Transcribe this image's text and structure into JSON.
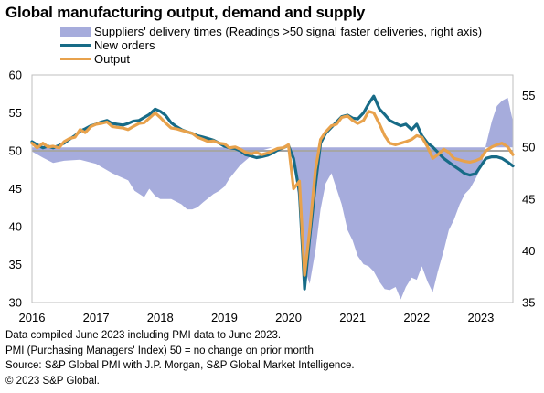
{
  "title": "Global manufacturing output, demand and supply",
  "notes": [
    "Data compiled June 2023 including PMI data to June 2023.",
    "PMI (Purchasing Managers' Index) 50 = no change on prior month",
    "Source: S&P Global  PMI with J.P. Morgan, S&P Global Market Intelligence.",
    "© 2023 S&P Global."
  ],
  "chart_data": {
    "type": "line",
    "title": "Global manufacturing output, demand and supply",
    "x_unit": "decimal year",
    "x_range": [
      2016.0,
      2023.5
    ],
    "x_ticks": [
      "2016",
      "2017",
      "2018",
      "2019",
      "2020",
      "2021",
      "2022",
      "2023"
    ],
    "ylim_left": [
      30,
      60
    ],
    "y_ticks_left": [
      30,
      35,
      40,
      45,
      50,
      55,
      60
    ],
    "ylim_right": [
      35,
      57
    ],
    "y_ticks_right": [
      35,
      40,
      45,
      50,
      55
    ],
    "reference_line": 50,
    "grid": false,
    "legend_position": "top",
    "series": [
      {
        "name": "Suppliers' delivery times (Readings >50 signal faster deliveries, right axis)",
        "axis": "right",
        "style": "area",
        "color": "#a6acdc",
        "points": [
          [
            2016.0,
            49.6
          ],
          [
            2016.17,
            49.0
          ],
          [
            2016.33,
            48.5
          ],
          [
            2016.5,
            48.7
          ],
          [
            2016.75,
            48.8
          ],
          [
            2017.0,
            48.4
          ],
          [
            2017.25,
            47.5
          ],
          [
            2017.5,
            46.8
          ],
          [
            2017.6,
            45.8
          ],
          [
            2017.75,
            45.2
          ],
          [
            2017.83,
            46.0
          ],
          [
            2017.92,
            45.3
          ],
          [
            2018.0,
            45.0
          ],
          [
            2018.17,
            45.0
          ],
          [
            2018.33,
            44.5
          ],
          [
            2018.42,
            44.0
          ],
          [
            2018.5,
            44.0
          ],
          [
            2018.58,
            44.2
          ],
          [
            2018.67,
            44.7
          ],
          [
            2018.83,
            45.5
          ],
          [
            2018.92,
            45.8
          ],
          [
            2019.0,
            46.2
          ],
          [
            2019.08,
            47.0
          ],
          [
            2019.25,
            48.3
          ],
          [
            2019.42,
            49.2
          ],
          [
            2019.58,
            49.7
          ],
          [
            2019.75,
            50.0
          ],
          [
            2019.92,
            50.0
          ],
          [
            2020.0,
            50.1
          ],
          [
            2020.08,
            49.3
          ],
          [
            2020.17,
            44.0
          ],
          [
            2020.25,
            38.3
          ],
          [
            2020.33,
            36.8
          ],
          [
            2020.42,
            40.0
          ],
          [
            2020.5,
            44.0
          ],
          [
            2020.58,
            46.5
          ],
          [
            2020.67,
            47.5
          ],
          [
            2020.75,
            46.0
          ],
          [
            2020.83,
            44.5
          ],
          [
            2020.92,
            42.0
          ],
          [
            2021.0,
            41.0
          ],
          [
            2021.08,
            39.5
          ],
          [
            2021.17,
            38.7
          ],
          [
            2021.25,
            38.5
          ],
          [
            2021.33,
            38.0
          ],
          [
            2021.42,
            37.0
          ],
          [
            2021.5,
            36.3
          ],
          [
            2021.58,
            36.2
          ],
          [
            2021.67,
            36.5
          ],
          [
            2021.75,
            35.3
          ],
          [
            2021.83,
            36.5
          ],
          [
            2021.92,
            37.4
          ],
          [
            2022.0,
            37.2
          ],
          [
            2022.08,
            38.5
          ],
          [
            2022.17,
            37.0
          ],
          [
            2022.25,
            36.0
          ],
          [
            2022.33,
            38.0
          ],
          [
            2022.42,
            40.0
          ],
          [
            2022.5,
            42.0
          ],
          [
            2022.58,
            43.0
          ],
          [
            2022.67,
            44.5
          ],
          [
            2022.75,
            45.5
          ],
          [
            2022.83,
            46.0
          ],
          [
            2022.92,
            47.0
          ],
          [
            2023.0,
            48.0
          ],
          [
            2023.08,
            50.2
          ],
          [
            2023.17,
            52.5
          ],
          [
            2023.25,
            54.0
          ],
          [
            2023.33,
            54.5
          ],
          [
            2023.42,
            54.8
          ],
          [
            2023.5,
            52.5
          ]
        ]
      },
      {
        "name": "New orders",
        "axis": "left",
        "style": "line",
        "color": "#176b87",
        "points": [
          [
            2016.0,
            51.2
          ],
          [
            2016.08,
            50.8
          ],
          [
            2016.17,
            50.4
          ],
          [
            2016.25,
            50.6
          ],
          [
            2016.33,
            50.4
          ],
          [
            2016.42,
            50.7
          ],
          [
            2016.5,
            51.0
          ],
          [
            2016.58,
            51.5
          ],
          [
            2016.67,
            52.0
          ],
          [
            2016.75,
            52.6
          ],
          [
            2016.83,
            52.9
          ],
          [
            2016.92,
            53.3
          ],
          [
            2017.0,
            53.5
          ],
          [
            2017.08,
            53.8
          ],
          [
            2017.17,
            54.0
          ],
          [
            2017.25,
            53.6
          ],
          [
            2017.33,
            53.5
          ],
          [
            2017.42,
            53.4
          ],
          [
            2017.5,
            53.6
          ],
          [
            2017.58,
            53.9
          ],
          [
            2017.67,
            54.0
          ],
          [
            2017.75,
            54.4
          ],
          [
            2017.83,
            54.8
          ],
          [
            2017.92,
            55.5
          ],
          [
            2018.0,
            55.2
          ],
          [
            2018.08,
            54.7
          ],
          [
            2018.17,
            53.7
          ],
          [
            2018.25,
            53.2
          ],
          [
            2018.33,
            52.8
          ],
          [
            2018.42,
            52.5
          ],
          [
            2018.5,
            52.3
          ],
          [
            2018.58,
            52.0
          ],
          [
            2018.67,
            51.8
          ],
          [
            2018.75,
            51.6
          ],
          [
            2018.83,
            51.4
          ],
          [
            2018.92,
            51.0
          ],
          [
            2019.0,
            50.6
          ],
          [
            2019.08,
            50.4
          ],
          [
            2019.17,
            50.3
          ],
          [
            2019.25,
            50.0
          ],
          [
            2019.33,
            49.5
          ],
          [
            2019.42,
            49.3
          ],
          [
            2019.5,
            49.1
          ],
          [
            2019.58,
            49.2
          ],
          [
            2019.67,
            49.4
          ],
          [
            2019.75,
            49.7
          ],
          [
            2019.83,
            50.1
          ],
          [
            2019.92,
            50.4
          ],
          [
            2020.0,
            50.7
          ],
          [
            2020.08,
            49.0
          ],
          [
            2020.17,
            44.5
          ],
          [
            2020.25,
            31.8
          ],
          [
            2020.33,
            38.5
          ],
          [
            2020.42,
            45.5
          ],
          [
            2020.5,
            51.0
          ],
          [
            2020.58,
            52.3
          ],
          [
            2020.67,
            53.1
          ],
          [
            2020.75,
            53.8
          ],
          [
            2020.83,
            54.5
          ],
          [
            2020.92,
            54.7
          ],
          [
            2021.0,
            54.3
          ],
          [
            2021.08,
            54.2
          ],
          [
            2021.17,
            55.0
          ],
          [
            2021.25,
            56.2
          ],
          [
            2021.33,
            57.2
          ],
          [
            2021.42,
            55.5
          ],
          [
            2021.5,
            54.8
          ],
          [
            2021.58,
            54.0
          ],
          [
            2021.67,
            53.6
          ],
          [
            2021.75,
            53.3
          ],
          [
            2021.83,
            53.5
          ],
          [
            2021.92,
            52.8
          ],
          [
            2022.0,
            53.5
          ],
          [
            2022.08,
            52.0
          ],
          [
            2022.17,
            51.0
          ],
          [
            2022.25,
            50.5
          ],
          [
            2022.33,
            49.8
          ],
          [
            2022.42,
            49.0
          ],
          [
            2022.5,
            48.5
          ],
          [
            2022.58,
            48.0
          ],
          [
            2022.67,
            47.5
          ],
          [
            2022.75,
            47.0
          ],
          [
            2022.83,
            46.8
          ],
          [
            2022.92,
            47.0
          ],
          [
            2023.0,
            48.0
          ],
          [
            2023.08,
            49.0
          ],
          [
            2023.17,
            49.2
          ],
          [
            2023.25,
            49.2
          ],
          [
            2023.33,
            49.0
          ],
          [
            2023.42,
            48.5
          ],
          [
            2023.5,
            48.0
          ]
        ]
      },
      {
        "name": "Output",
        "axis": "left",
        "style": "line",
        "color": "#e8a24c",
        "points": [
          [
            2016.0,
            51.0
          ],
          [
            2016.08,
            50.4
          ],
          [
            2016.17,
            51.0
          ],
          [
            2016.25,
            50.5
          ],
          [
            2016.33,
            50.6
          ],
          [
            2016.42,
            50.4
          ],
          [
            2016.5,
            51.2
          ],
          [
            2016.58,
            51.6
          ],
          [
            2016.67,
            51.8
          ],
          [
            2016.75,
            52.8
          ],
          [
            2016.83,
            52.4
          ],
          [
            2016.92,
            53.2
          ],
          [
            2017.0,
            53.5
          ],
          [
            2017.08,
            53.6
          ],
          [
            2017.17,
            53.8
          ],
          [
            2017.25,
            53.2
          ],
          [
            2017.33,
            53.1
          ],
          [
            2017.42,
            53.0
          ],
          [
            2017.5,
            52.8
          ],
          [
            2017.58,
            53.2
          ],
          [
            2017.67,
            53.6
          ],
          [
            2017.75,
            53.7
          ],
          [
            2017.83,
            54.3
          ],
          [
            2017.92,
            55.0
          ],
          [
            2018.0,
            54.4
          ],
          [
            2018.08,
            53.7
          ],
          [
            2018.17,
            53.0
          ],
          [
            2018.25,
            52.9
          ],
          [
            2018.33,
            52.7
          ],
          [
            2018.42,
            52.5
          ],
          [
            2018.5,
            52.3
          ],
          [
            2018.58,
            51.8
          ],
          [
            2018.67,
            51.5
          ],
          [
            2018.75,
            51.2
          ],
          [
            2018.83,
            51.3
          ],
          [
            2018.92,
            51.0
          ],
          [
            2019.0,
            50.9
          ],
          [
            2019.08,
            50.4
          ],
          [
            2019.17,
            50.5
          ],
          [
            2019.25,
            50.2
          ],
          [
            2019.33,
            49.8
          ],
          [
            2019.42,
            49.6
          ],
          [
            2019.5,
            49.8
          ],
          [
            2019.58,
            49.5
          ],
          [
            2019.67,
            49.7
          ],
          [
            2019.75,
            50.0
          ],
          [
            2019.83,
            50.3
          ],
          [
            2019.92,
            50.4
          ],
          [
            2020.0,
            50.8
          ],
          [
            2020.08,
            45.0
          ],
          [
            2020.17,
            46.0
          ],
          [
            2020.25,
            33.6
          ],
          [
            2020.33,
            39.5
          ],
          [
            2020.42,
            47.5
          ],
          [
            2020.5,
            51.5
          ],
          [
            2020.58,
            52.5
          ],
          [
            2020.67,
            53.3
          ],
          [
            2020.75,
            53.5
          ],
          [
            2020.83,
            54.4
          ],
          [
            2020.92,
            54.6
          ],
          [
            2021.0,
            54.0
          ],
          [
            2021.08,
            53.6
          ],
          [
            2021.17,
            54.0
          ],
          [
            2021.25,
            55.2
          ],
          [
            2021.33,
            55.0
          ],
          [
            2021.42,
            53.5
          ],
          [
            2021.5,
            52.0
          ],
          [
            2021.58,
            51.0
          ],
          [
            2021.67,
            50.8
          ],
          [
            2021.75,
            51.0
          ],
          [
            2021.83,
            51.2
          ],
          [
            2021.92,
            51.5
          ],
          [
            2022.0,
            52.0
          ],
          [
            2022.08,
            51.8
          ],
          [
            2022.17,
            50.5
          ],
          [
            2022.25,
            49.0
          ],
          [
            2022.33,
            49.5
          ],
          [
            2022.42,
            50.2
          ],
          [
            2022.5,
            49.8
          ],
          [
            2022.58,
            49.0
          ],
          [
            2022.67,
            48.8
          ],
          [
            2022.75,
            48.6
          ],
          [
            2022.83,
            48.5
          ],
          [
            2022.92,
            48.7
          ],
          [
            2023.0,
            49.0
          ],
          [
            2023.08,
            50.0
          ],
          [
            2023.17,
            50.5
          ],
          [
            2023.25,
            50.8
          ],
          [
            2023.33,
            51.0
          ],
          [
            2023.42,
            50.5
          ],
          [
            2023.5,
            49.5
          ]
        ]
      }
    ]
  }
}
